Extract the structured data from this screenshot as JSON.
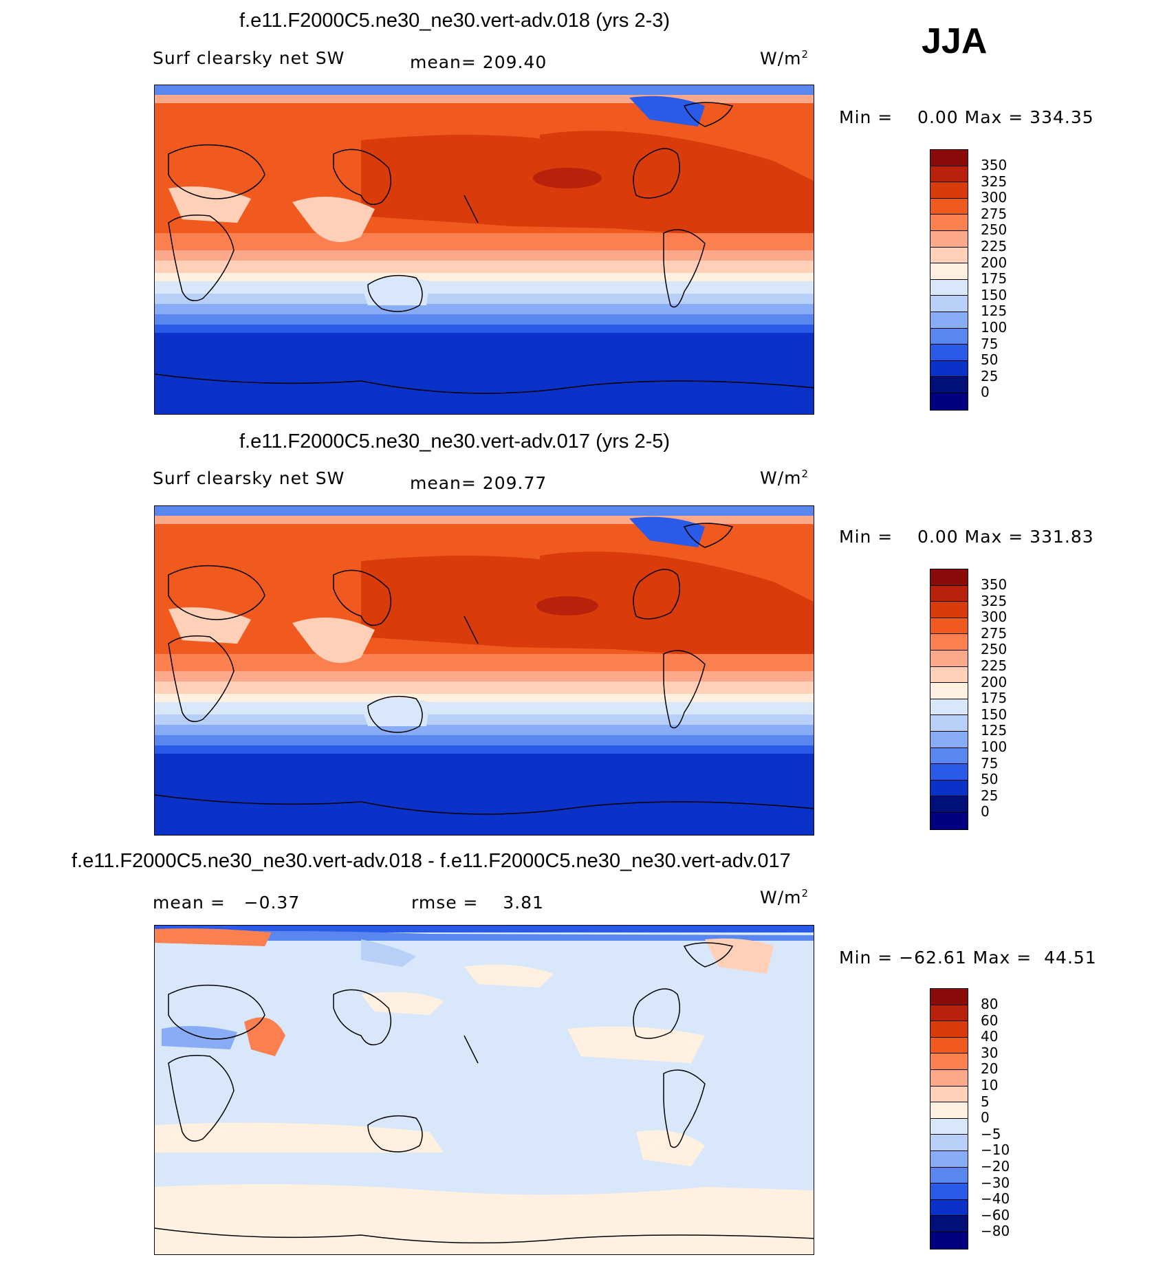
{
  "season": "JJA",
  "units_label": "W/m",
  "units_sup": "2",
  "panels": [
    {
      "title": "f.e11.F2000C5.ne30_ne30.vert-adv.018 (yrs 2-3)",
      "left_label": "Surf clearsky net SW",
      "center_label": "mean= 209.40",
      "minmax": "Min =    0.00 Max = 334.35",
      "legend_labels": [
        "350",
        "325",
        "300",
        "275",
        "250",
        "225",
        "200",
        "175",
        "150",
        "125",
        "100",
        "75",
        "50",
        "25",
        "0"
      ]
    },
    {
      "title": "f.e11.F2000C5.ne30_ne30.vert-adv.017 (yrs 2-5)",
      "left_label": "Surf clearsky net SW",
      "center_label": "mean= 209.77",
      "minmax": "Min =    0.00 Max = 331.83",
      "legend_labels": [
        "350",
        "325",
        "300",
        "275",
        "250",
        "225",
        "200",
        "175",
        "150",
        "125",
        "100",
        "75",
        "50",
        "25",
        "0"
      ]
    },
    {
      "title": "f.e11.F2000C5.ne30_ne30.vert-adv.018 - f.e11.F2000C5.ne30_ne30.vert-adv.017",
      "left_label": "mean =   −0.37",
      "center_label": "rmse =    3.81",
      "minmax": "Min = −62.61 Max =  44.51",
      "legend_labels": [
        "80",
        "60",
        "40",
        "30",
        "20",
        "10",
        "5",
        "0",
        "−5",
        "−10",
        "−20",
        "−30",
        "−40",
        "−60",
        "−80"
      ]
    }
  ],
  "colorbar_colors": [
    "#8b0a0a",
    "#b8220a",
    "#d93b0a",
    "#f05a1e",
    "#fa8050",
    "#fca88a",
    "#fed0b8",
    "#fff0e0",
    "#d8e8fa",
    "#b8d0f8",
    "#88acf5",
    "#5a86f0",
    "#2a5ae8",
    "#0a32c8",
    "#02107a",
    "#000080"
  ]
}
